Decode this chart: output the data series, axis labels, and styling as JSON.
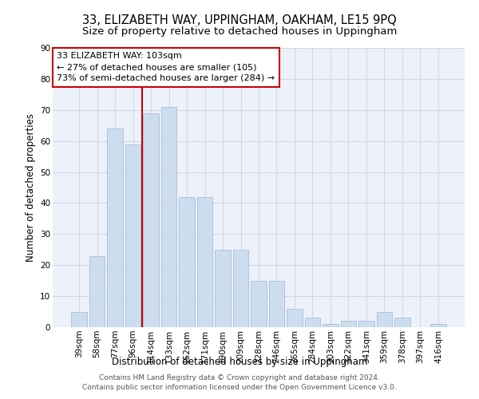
{
  "title": "33, ELIZABETH WAY, UPPINGHAM, OAKHAM, LE15 9PQ",
  "subtitle": "Size of property relative to detached houses in Uppingham",
  "xlabel": "Distribution of detached houses by size in Uppingham",
  "ylabel": "Number of detached properties",
  "bar_labels": [
    "39sqm",
    "58sqm",
    "77sqm",
    "96sqm",
    "114sqm",
    "133sqm",
    "152sqm",
    "171sqm",
    "190sqm",
    "209sqm",
    "228sqm",
    "246sqm",
    "265sqm",
    "284sqm",
    "303sqm",
    "322sqm",
    "341sqm",
    "359sqm",
    "378sqm",
    "397sqm",
    "416sqm"
  ],
  "bar_values": [
    5,
    23,
    64,
    59,
    69,
    71,
    42,
    42,
    25,
    25,
    15,
    15,
    6,
    3,
    1,
    2,
    2,
    5,
    3,
    0,
    1
  ],
  "bar_color": "#ccddf0",
  "bar_edgecolor": "#aabbd8",
  "vline_x": 3.5,
  "vline_color": "#cc0000",
  "annotation_text": "33 ELIZABETH WAY: 103sqm\n← 27% of detached houses are smaller (105)\n73% of semi-detached houses are larger (284) →",
  "annotation_box_edgecolor": "#cc0000",
  "annotation_box_facecolor": "#ffffff",
  "ylim": [
    0,
    90
  ],
  "yticks": [
    0,
    10,
    20,
    30,
    40,
    50,
    60,
    70,
    80,
    90
  ],
  "grid_color": "#d0d8e8",
  "background_color": "#edf2fa",
  "footer_text": "Contains HM Land Registry data © Crown copyright and database right 2024.\nContains public sector information licensed under the Open Government Licence v3.0.",
  "title_fontsize": 10.5,
  "subtitle_fontsize": 9.5,
  "xlabel_fontsize": 8.5,
  "ylabel_fontsize": 8.5,
  "tick_fontsize": 7.5,
  "annotation_fontsize": 8,
  "footer_fontsize": 6.5
}
